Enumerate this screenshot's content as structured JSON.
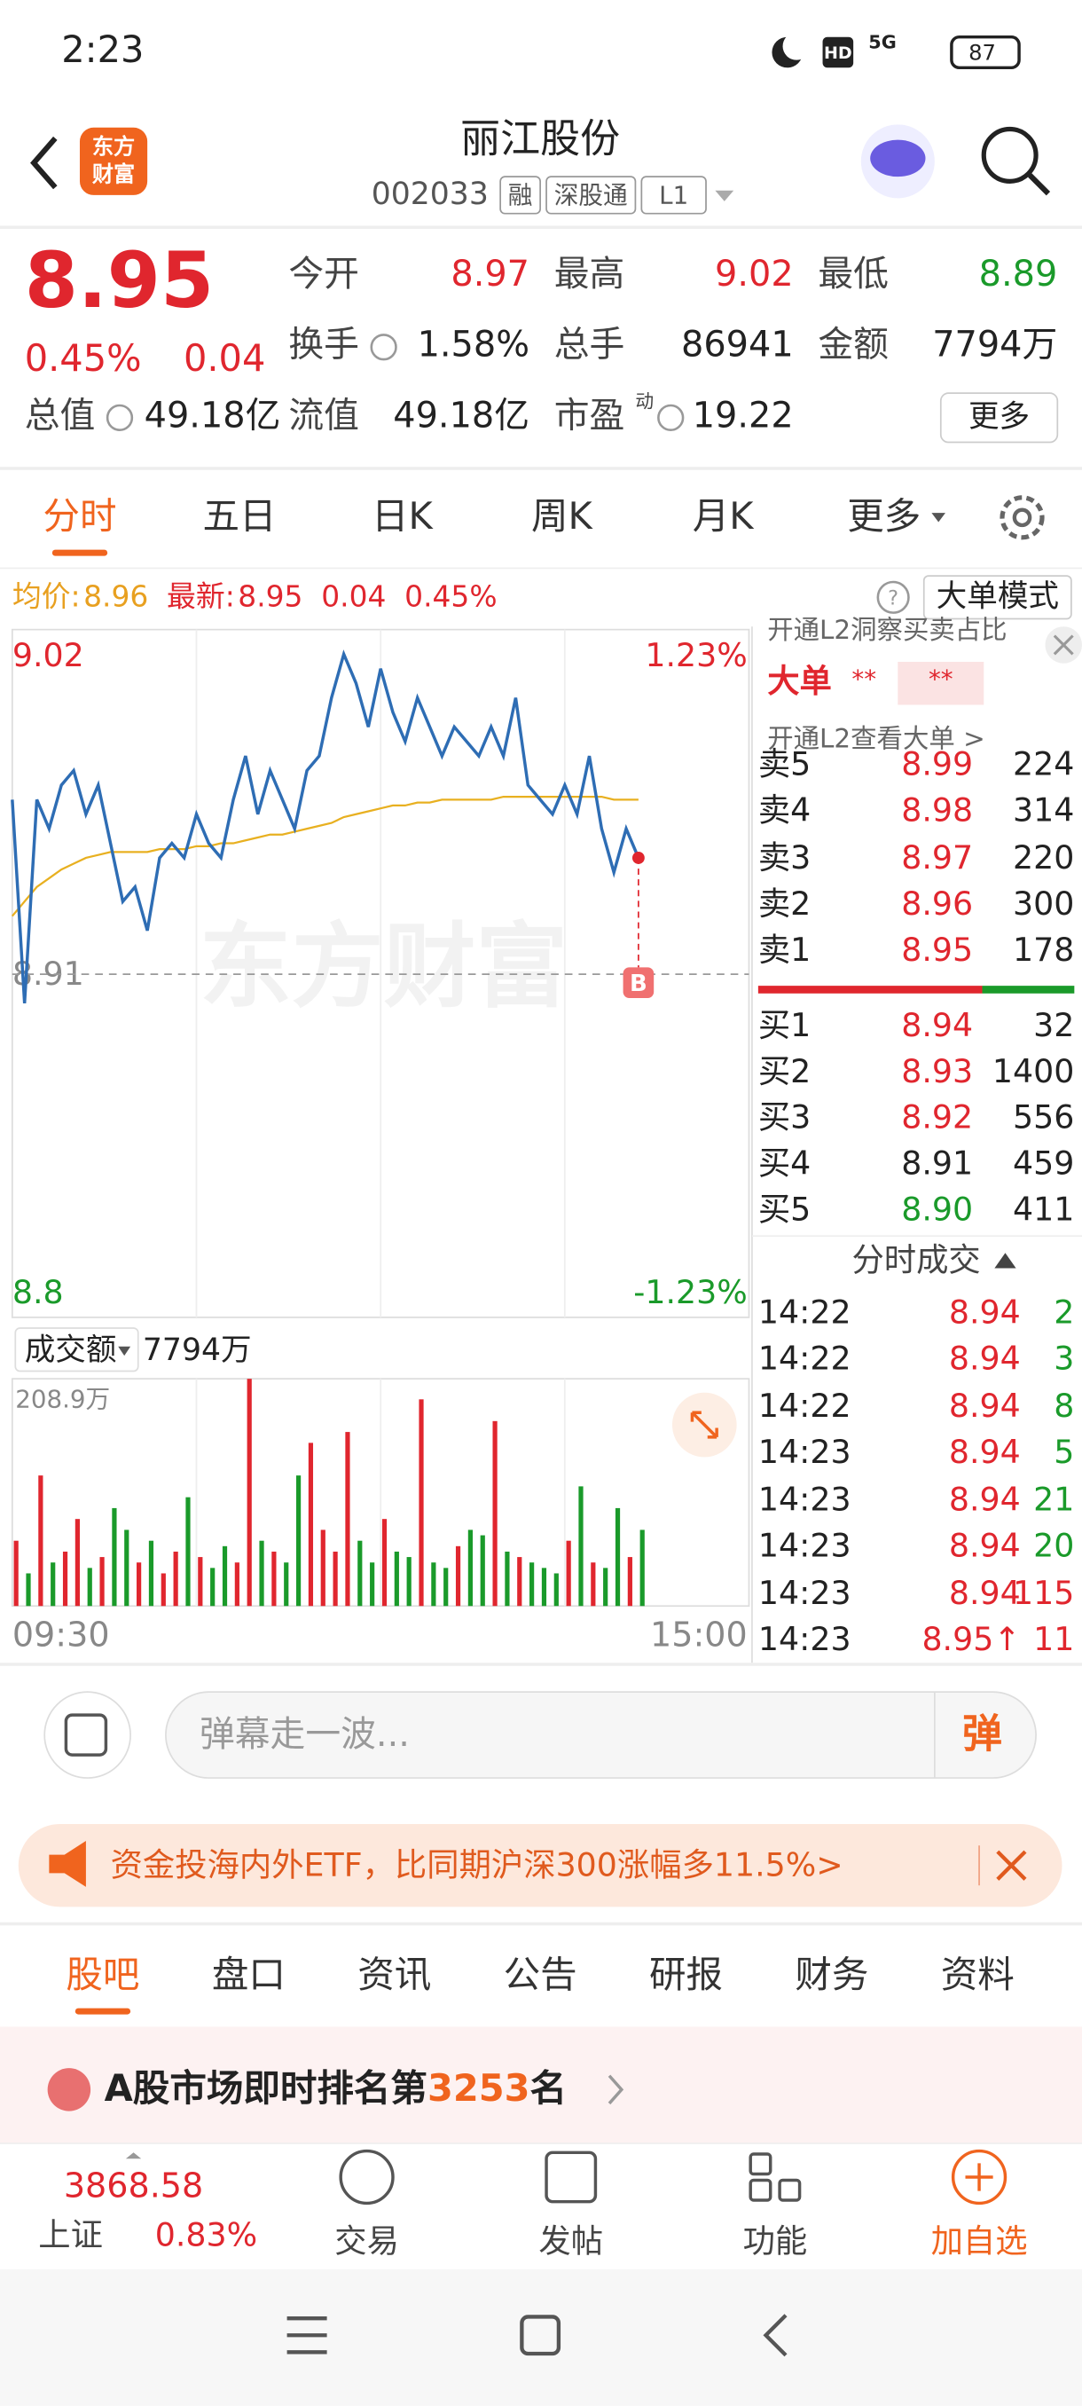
{
  "status": {
    "time": "2:23",
    "hd": "HD",
    "network": "5G",
    "battery": "87"
  },
  "header": {
    "title": "丽江股份",
    "code": "002033",
    "tags": [
      "融",
      "深股通",
      "L1"
    ],
    "logo": [
      "东方",
      "财富"
    ]
  },
  "quote": {
    "price": "8.95",
    "change_pct": "0.45%",
    "change": "0.04",
    "fields": [
      {
        "label": "今开",
        "value": "8.97",
        "color": "#e0262e"
      },
      {
        "label": "最高",
        "value": "9.02",
        "color": "#e0262e"
      },
      {
        "label": "最低",
        "value": "8.89",
        "color": "#1a9a2a"
      },
      {
        "label": "换手",
        "value": "1.58%"
      },
      {
        "label": "总手",
        "value": "86941"
      },
      {
        "label": "金额",
        "value": "7794万"
      },
      {
        "label": "总值",
        "value": "49.18亿"
      },
      {
        "label": "流值",
        "value": "49.18亿"
      },
      {
        "label": "市盈",
        "value": "19.22"
      }
    ],
    "pe_mark": "动",
    "more": "更多"
  },
  "tabs": [
    "分时",
    "五日",
    "日K",
    "周K",
    "月K",
    "更多"
  ],
  "info_bar": {
    "avg_label": "均价:",
    "avg": "8.96",
    "last_label": "最新:",
    "last": "8.95",
    "change": "0.04",
    "change_pct": "0.45%",
    "mode": "大单模式"
  },
  "intraday": {
    "ylim": [
      8.8,
      9.02
    ],
    "yticks": [
      9.02,
      8.91,
      8.8
    ],
    "pct_labels": [
      "1.23%",
      "-1.23%"
    ],
    "time_labels": [
      "09:30",
      "15:00"
    ],
    "watermark": "东方财富",
    "marker": "B",
    "prices": [
      8.97,
      8.9,
      8.97,
      8.96,
      8.975,
      8.98,
      8.965,
      8.975,
      8.955,
      8.935,
      8.94,
      8.925,
      8.95,
      8.955,
      8.95,
      8.965,
      8.955,
      8.95,
      8.97,
      8.985,
      8.965,
      8.98,
      8.97,
      8.96,
      8.98,
      8.985,
      9.005,
      9.02,
      9.01,
      8.995,
      9.015,
      9.0,
      8.99,
      9.005,
      8.995,
      8.985,
      8.995,
      8.99,
      8.985,
      8.995,
      8.985,
      9.005,
      8.975,
      8.97,
      8.965,
      8.975,
      8.965,
      8.985,
      8.96,
      8.945,
      8.96,
      8.95
    ],
    "avg": [
      8.93,
      8.935,
      8.94,
      8.943,
      8.946,
      8.948,
      8.95,
      8.951,
      8.952,
      8.952,
      8.952,
      8.952,
      8.953,
      8.953,
      8.953,
      8.954,
      8.954,
      8.955,
      8.955,
      8.956,
      8.957,
      8.958,
      8.958,
      8.959,
      8.96,
      8.961,
      8.962,
      8.964,
      8.965,
      8.966,
      8.967,
      8.968,
      8.968,
      8.969,
      8.969,
      8.97,
      8.97,
      8.97,
      8.97,
      8.97,
      8.971,
      8.971,
      8.971,
      8.971,
      8.971,
      8.971,
      8.971,
      8.971,
      8.971,
      8.97,
      8.97,
      8.97
    ],
    "price_color": "#2e6db4",
    "avg_color": "#e8b020"
  },
  "volume": {
    "label": "成交额",
    "total": "7794万",
    "max_label": "208.9万",
    "ylim": [
      0,
      208.9
    ],
    "up_color": "#e0262e",
    "down_color": "#1a9a2a",
    "values": [
      60,
      30,
      120,
      40,
      50,
      80,
      35,
      45,
      90,
      70,
      40,
      60,
      30,
      50,
      100,
      45,
      35,
      55,
      40,
      208.9,
      60,
      50,
      40,
      120,
      150,
      70,
      50,
      160,
      60,
      40,
      80,
      50,
      45,
      190,
      40,
      35,
      55,
      70,
      65,
      170,
      50,
      45,
      40,
      35,
      30,
      60,
      110,
      40,
      35,
      90,
      45,
      70
    ]
  },
  "order_book": {
    "l2_tip": "开通L2洞察买卖占比",
    "big_label": "大单",
    "big_values": [
      "**",
      "**"
    ],
    "l2_tip2": "开通L2查看大单 >",
    "asks": [
      {
        "label": "卖5",
        "price": "8.99",
        "vol": "224"
      },
      {
        "label": "卖4",
        "price": "8.98",
        "vol": "314"
      },
      {
        "label": "卖3",
        "price": "8.97",
        "vol": "220"
      },
      {
        "label": "卖2",
        "price": "8.96",
        "vol": "300"
      },
      {
        "label": "卖1",
        "price": "8.95",
        "vol": "178"
      }
    ],
    "bids": [
      {
        "label": "买1",
        "price": "8.94",
        "vol": "32"
      },
      {
        "label": "买2",
        "price": "8.93",
        "vol": "1400"
      },
      {
        "label": "买3",
        "price": "8.92",
        "vol": "556"
      },
      {
        "label": "买4",
        "price": "8.91",
        "vol": "459"
      },
      {
        "label": "买5",
        "price": "8.90",
        "vol": "411"
      }
    ]
  },
  "trades": {
    "title": "分时成交",
    "rows": [
      [
        "14:22",
        "8.94",
        "2"
      ],
      [
        "14:22",
        "8.94",
        "3"
      ],
      [
        "14:22",
        "8.94",
        "8"
      ],
      [
        "14:23",
        "8.94",
        "5"
      ],
      [
        "14:23",
        "8.94",
        "21"
      ],
      [
        "14:23",
        "8.94",
        "20"
      ],
      [
        "14:23",
        "8.94",
        "115"
      ],
      [
        "14:23",
        "8.95↑",
        "11"
      ]
    ],
    "colors": [
      "#1a9a2a",
      "#1a9a2a",
      "#1a9a2a",
      "#1a9a2a",
      "#1a9a2a",
      "#1a9a2a",
      "#e0262e",
      "#e0262e"
    ]
  },
  "comment": {
    "placeholder": "弹幕走一波...",
    "button": "弹"
  },
  "banner": {
    "text": "资金投海内外ETF，比同期沪深300涨幅多11.5%>"
  },
  "sub_tabs": [
    "股吧",
    "盘口",
    "资讯",
    "公告",
    "研报",
    "财务",
    "资料"
  ],
  "rank": {
    "prefix": "A股市场即时排名第",
    "number": "3253",
    "suffix": "名"
  },
  "bottom_bar": {
    "index_value": "3868.58",
    "index_name": "上证",
    "index_change": "0.83%",
    "items": [
      "交易",
      "发帖",
      "功能",
      "加自选"
    ]
  }
}
